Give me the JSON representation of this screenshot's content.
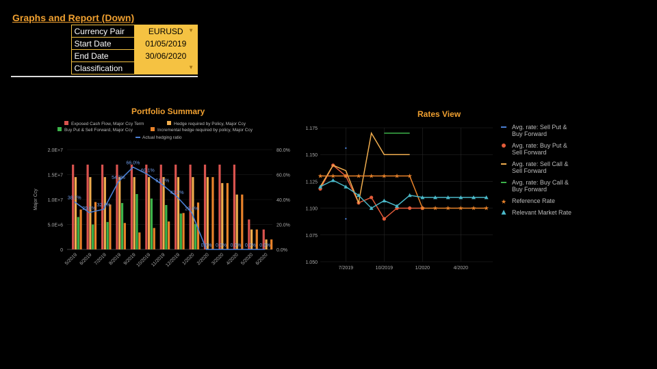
{
  "header": {
    "title": "Graphs and Report (Down)"
  },
  "params": {
    "rows": [
      {
        "label": "Currency Pair",
        "value": "EURUSD",
        "dropdown": true
      },
      {
        "label": "Start Date",
        "value": "01/05/2019",
        "dropdown": false
      },
      {
        "label": "End Date",
        "value": "30/06/2020",
        "dropdown": false
      },
      {
        "label": "Classification",
        "value": "",
        "dropdown": true
      }
    ]
  },
  "colors": {
    "exposed": "#d9534f",
    "hedge_required": "#f0ad4e",
    "buy_sell": "#3cb34a",
    "incremental": "#e8822a",
    "ratio": "#4a7fd4",
    "accent": "#f0a030",
    "sellput": "#4a7fd4",
    "buyput": "#e45c3a",
    "sellcall": "#f0ad4e",
    "buycall": "#3cb34a",
    "reference": "#e8822a",
    "market": "#4ab8c8"
  },
  "chart_data": [
    {
      "type": "bar",
      "title": "Portfolio Summary",
      "ylabel": "Major Ccy",
      "ylim": [
        0,
        20000000
      ],
      "y_ticks": [
        "0",
        "5.0E+6",
        "1.0E+7",
        "1.5E+7",
        "2.0E+7"
      ],
      "y2lim": [
        0,
        80
      ],
      "y2_ticks": [
        "0.0%",
        "20.0%",
        "40.0%",
        "60.0%",
        "80.0%"
      ],
      "categories": [
        "5/2019",
        "6/2019",
        "7/2019",
        "8/2019",
        "9/2019",
        "10/2019",
        "11/2019",
        "12/2019",
        "1/2020",
        "2/2020",
        "3/2020",
        "4/2020",
        "5/2020",
        "6/2020"
      ],
      "series": [
        {
          "name": "Exposed Cash Flow, Major Ccy Term",
          "color_key": "exposed",
          "values": [
            17000000,
            17000000,
            17000000,
            17000000,
            17000000,
            17000000,
            17000000,
            17000000,
            17000000,
            17000000,
            17000000,
            17000000,
            6000000,
            4000000
          ]
        },
        {
          "name": "Hedge required by Policy, Major Ccy",
          "color_key": "hedge_required",
          "values": [
            14500000,
            14500000,
            14500000,
            14500000,
            14500000,
            14500000,
            14500000,
            14500000,
            14500000,
            14500000,
            13300000,
            11000000,
            4000000,
            2000000
          ]
        },
        {
          "name": "Buy Put & Sell Forward, Major Ccy",
          "color_key": "buy_sell",
          "values": [
            6500000,
            5000000,
            5500000,
            9300000,
            11100000,
            10200000,
            8900000,
            7200000,
            5100000,
            0,
            0,
            0,
            0,
            0
          ]
        },
        {
          "name": "Incremental hedge required by policy, Major Ccy",
          "color_key": "incremental",
          "values": [
            8000000,
            9500000,
            9000000,
            5300000,
            3400000,
            4300000,
            5600000,
            7300000,
            9400000,
            14500000,
            13300000,
            11000000,
            4000000,
            2000000
          ]
        }
      ],
      "line": {
        "name": "Actual hedging ratio",
        "color_key": "ratio",
        "values": [
          38.2,
          29.6,
          32.2,
          54.3,
          66.0,
          60.1,
          51.9,
          42.2,
          29.4,
          0.0,
          0.0,
          0.0,
          0.0,
          0.0
        ],
        "labels": [
          "38.2%",
          "29.6%",
          "32.2%",
          "54.3%",
          "66.0%",
          "60.1%",
          "51.9%",
          "42.2%",
          "29.4%",
          "0.0%",
          "0.0%",
          "0.0%",
          "0.0%",
          "0.0%"
        ]
      }
    },
    {
      "type": "line",
      "title": "Rates View",
      "ylim": [
        1.05,
        1.175
      ],
      "y_ticks": [
        "1.050",
        "1.075",
        "1.100",
        "1.125",
        "1.150",
        "1.175"
      ],
      "x_ticks": [
        "7/2019",
        "10/2019",
        "1/2020",
        "4/2020"
      ],
      "x_tick_pos": [
        2,
        5,
        8,
        11
      ],
      "x_range": [
        0,
        13.5
      ],
      "series": [
        {
          "name": "Avg. rate:  Sell Put & Buy Forward",
          "color_key": "sellput",
          "marker": "dot",
          "points": [
            [
              2,
              1.156
            ],
            [
              2,
              1.09
            ]
          ]
        },
        {
          "name": "Avg. rate: Buy Put & Sell Forward",
          "color_key": "buyput",
          "marker": "circle",
          "points": [
            [
              0,
              1.118
            ],
            [
              1,
              1.14
            ],
            [
              2,
              1.13
            ],
            [
              3,
              1.105
            ],
            [
              4,
              1.11
            ],
            [
              5,
              1.09
            ],
            [
              6,
              1.1
            ],
            [
              7,
              1.1
            ],
            [
              8,
              1.1
            ]
          ]
        },
        {
          "name": "Avg. rate: Sell Call & Sell Forward",
          "color_key": "sellcall",
          "marker": "none",
          "points": [
            [
              0,
              1.12
            ],
            [
              1,
              1.14
            ],
            [
              2,
              1.135
            ],
            [
              3,
              1.105
            ],
            [
              4,
              1.17
            ],
            [
              5,
              1.15
            ],
            [
              6,
              1.15
            ],
            [
              7,
              1.15
            ]
          ]
        },
        {
          "name": "Avg. rate: Buy Call & Buy Forward",
          "color_key": "buycall",
          "marker": "none",
          "points": [
            [
              5,
              1.17
            ],
            [
              6,
              1.17
            ],
            [
              7,
              1.17
            ]
          ]
        },
        {
          "name": "Reference Rate",
          "color_key": "reference",
          "marker": "star",
          "points": [
            [
              0,
              1.13
            ],
            [
              1,
              1.13
            ],
            [
              2,
              1.13
            ],
            [
              3,
              1.13
            ],
            [
              4,
              1.13
            ],
            [
              5,
              1.13
            ],
            [
              6,
              1.13
            ],
            [
              7,
              1.13
            ],
            [
              8,
              1.1
            ],
            [
              9,
              1.1
            ],
            [
              10,
              1.1
            ],
            [
              11,
              1.1
            ],
            [
              12,
              1.1
            ],
            [
              13,
              1.1
            ]
          ]
        },
        {
          "name": "Relevant Market Rate",
          "color_key": "market",
          "marker": "triangle",
          "points": [
            [
              0,
              1.12
            ],
            [
              1,
              1.126
            ],
            [
              2,
              1.12
            ],
            [
              3,
              1.112
            ],
            [
              4,
              1.1
            ],
            [
              5,
              1.107
            ],
            [
              6,
              1.102
            ],
            [
              7,
              1.112
            ],
            [
              8,
              1.11
            ],
            [
              9,
              1.11
            ],
            [
              10,
              1.11
            ],
            [
              11,
              1.11
            ],
            [
              12,
              1.11
            ],
            [
              13,
              1.11
            ]
          ]
        }
      ]
    }
  ]
}
